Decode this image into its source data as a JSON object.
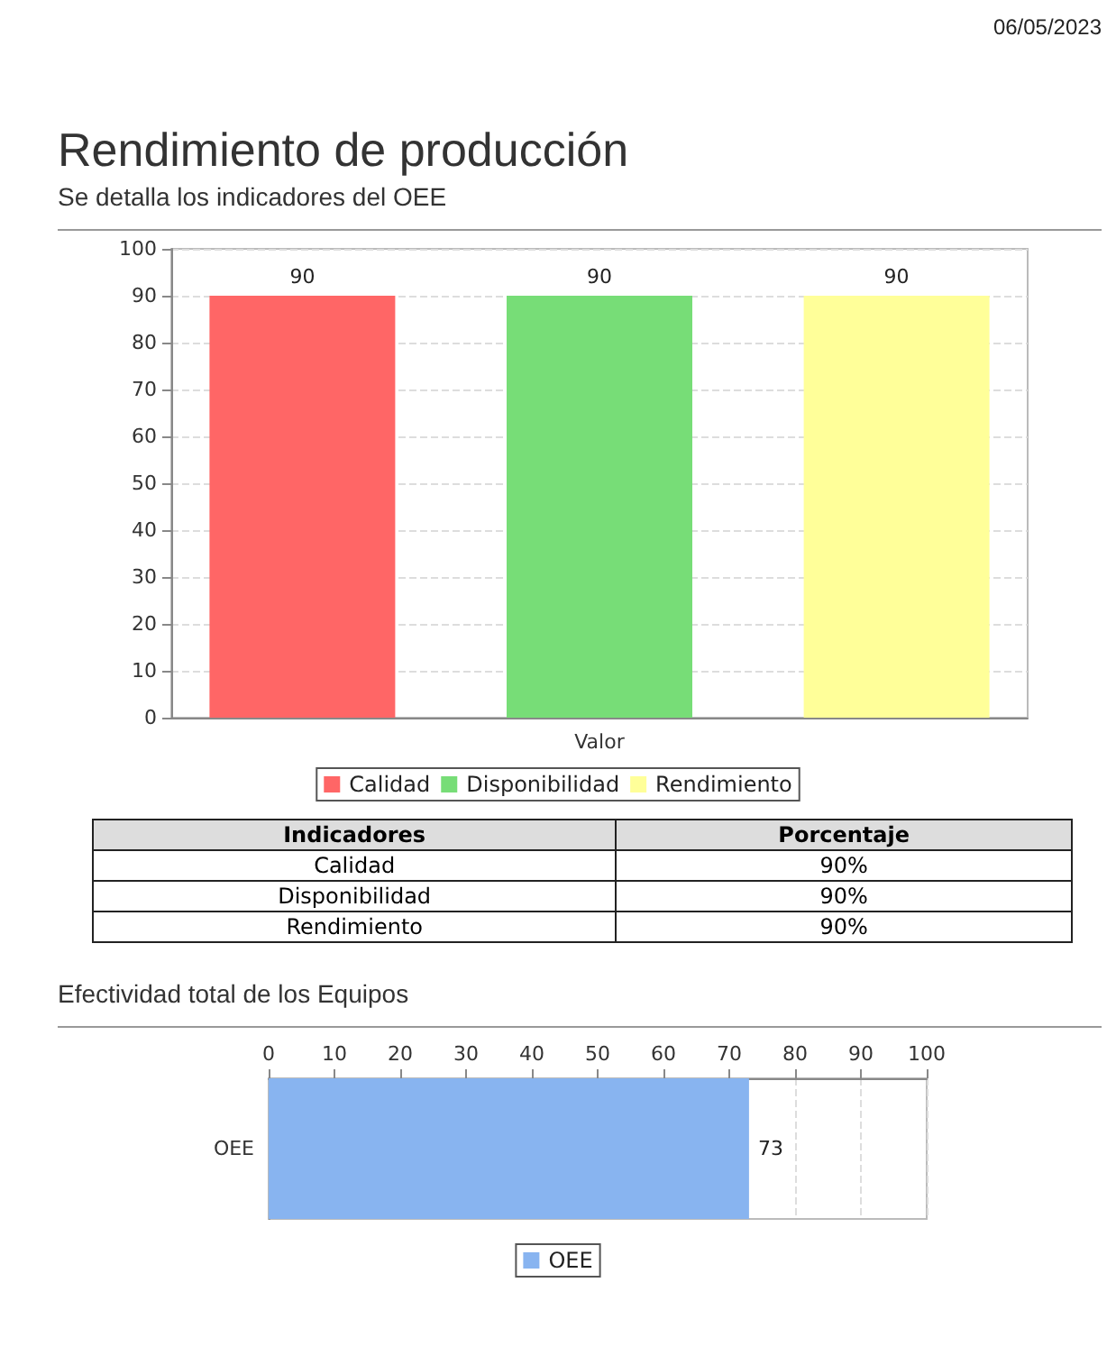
{
  "chart_data": [
    {
      "type": "bar",
      "title": "Rendimiento de producción",
      "subtitle": "Se detalla los indicadores del OEE",
      "annotations": [
        "06/05/2023"
      ],
      "categories": [
        "Valor"
      ],
      "series": [
        {
          "name": "Calidad",
          "color": "#ff6666",
          "values": [
            90
          ]
        },
        {
          "name": "Disponibilidad",
          "color": "#77dd77",
          "values": [
            90
          ]
        },
        {
          "name": "Rendimiento",
          "color": "#ffff99",
          "values": [
            90
          ]
        }
      ],
      "ylim": [
        0,
        100
      ],
      "yticks": [
        0,
        10,
        20,
        30,
        40,
        50,
        60,
        70,
        80,
        90,
        100
      ],
      "grid": "y",
      "legend": "bottom",
      "data_labels": true
    },
    {
      "type": "other",
      "xlabel": "Indicadores",
      "ylabel": "Porcentaje",
      "categories": [
        "Calidad",
        "Disponibilidad",
        "Rendimiento"
      ],
      "value_labels": [
        "90%",
        "90%",
        "90%"
      ]
    },
    {
      "type": "bar",
      "orientation": "horizontal",
      "title": "Efectividad total de los Equipos",
      "categories": [
        "OEE"
      ],
      "series": [
        {
          "name": "OEE",
          "color": "#88b4f0",
          "values": [
            73
          ]
        }
      ],
      "xlim": [
        0,
        100
      ],
      "xticks": [
        0,
        10,
        20,
        30,
        40,
        50,
        60,
        70,
        80,
        90,
        100
      ],
      "grid": "x",
      "legend": "bottom",
      "data_labels": true
    }
  ]
}
